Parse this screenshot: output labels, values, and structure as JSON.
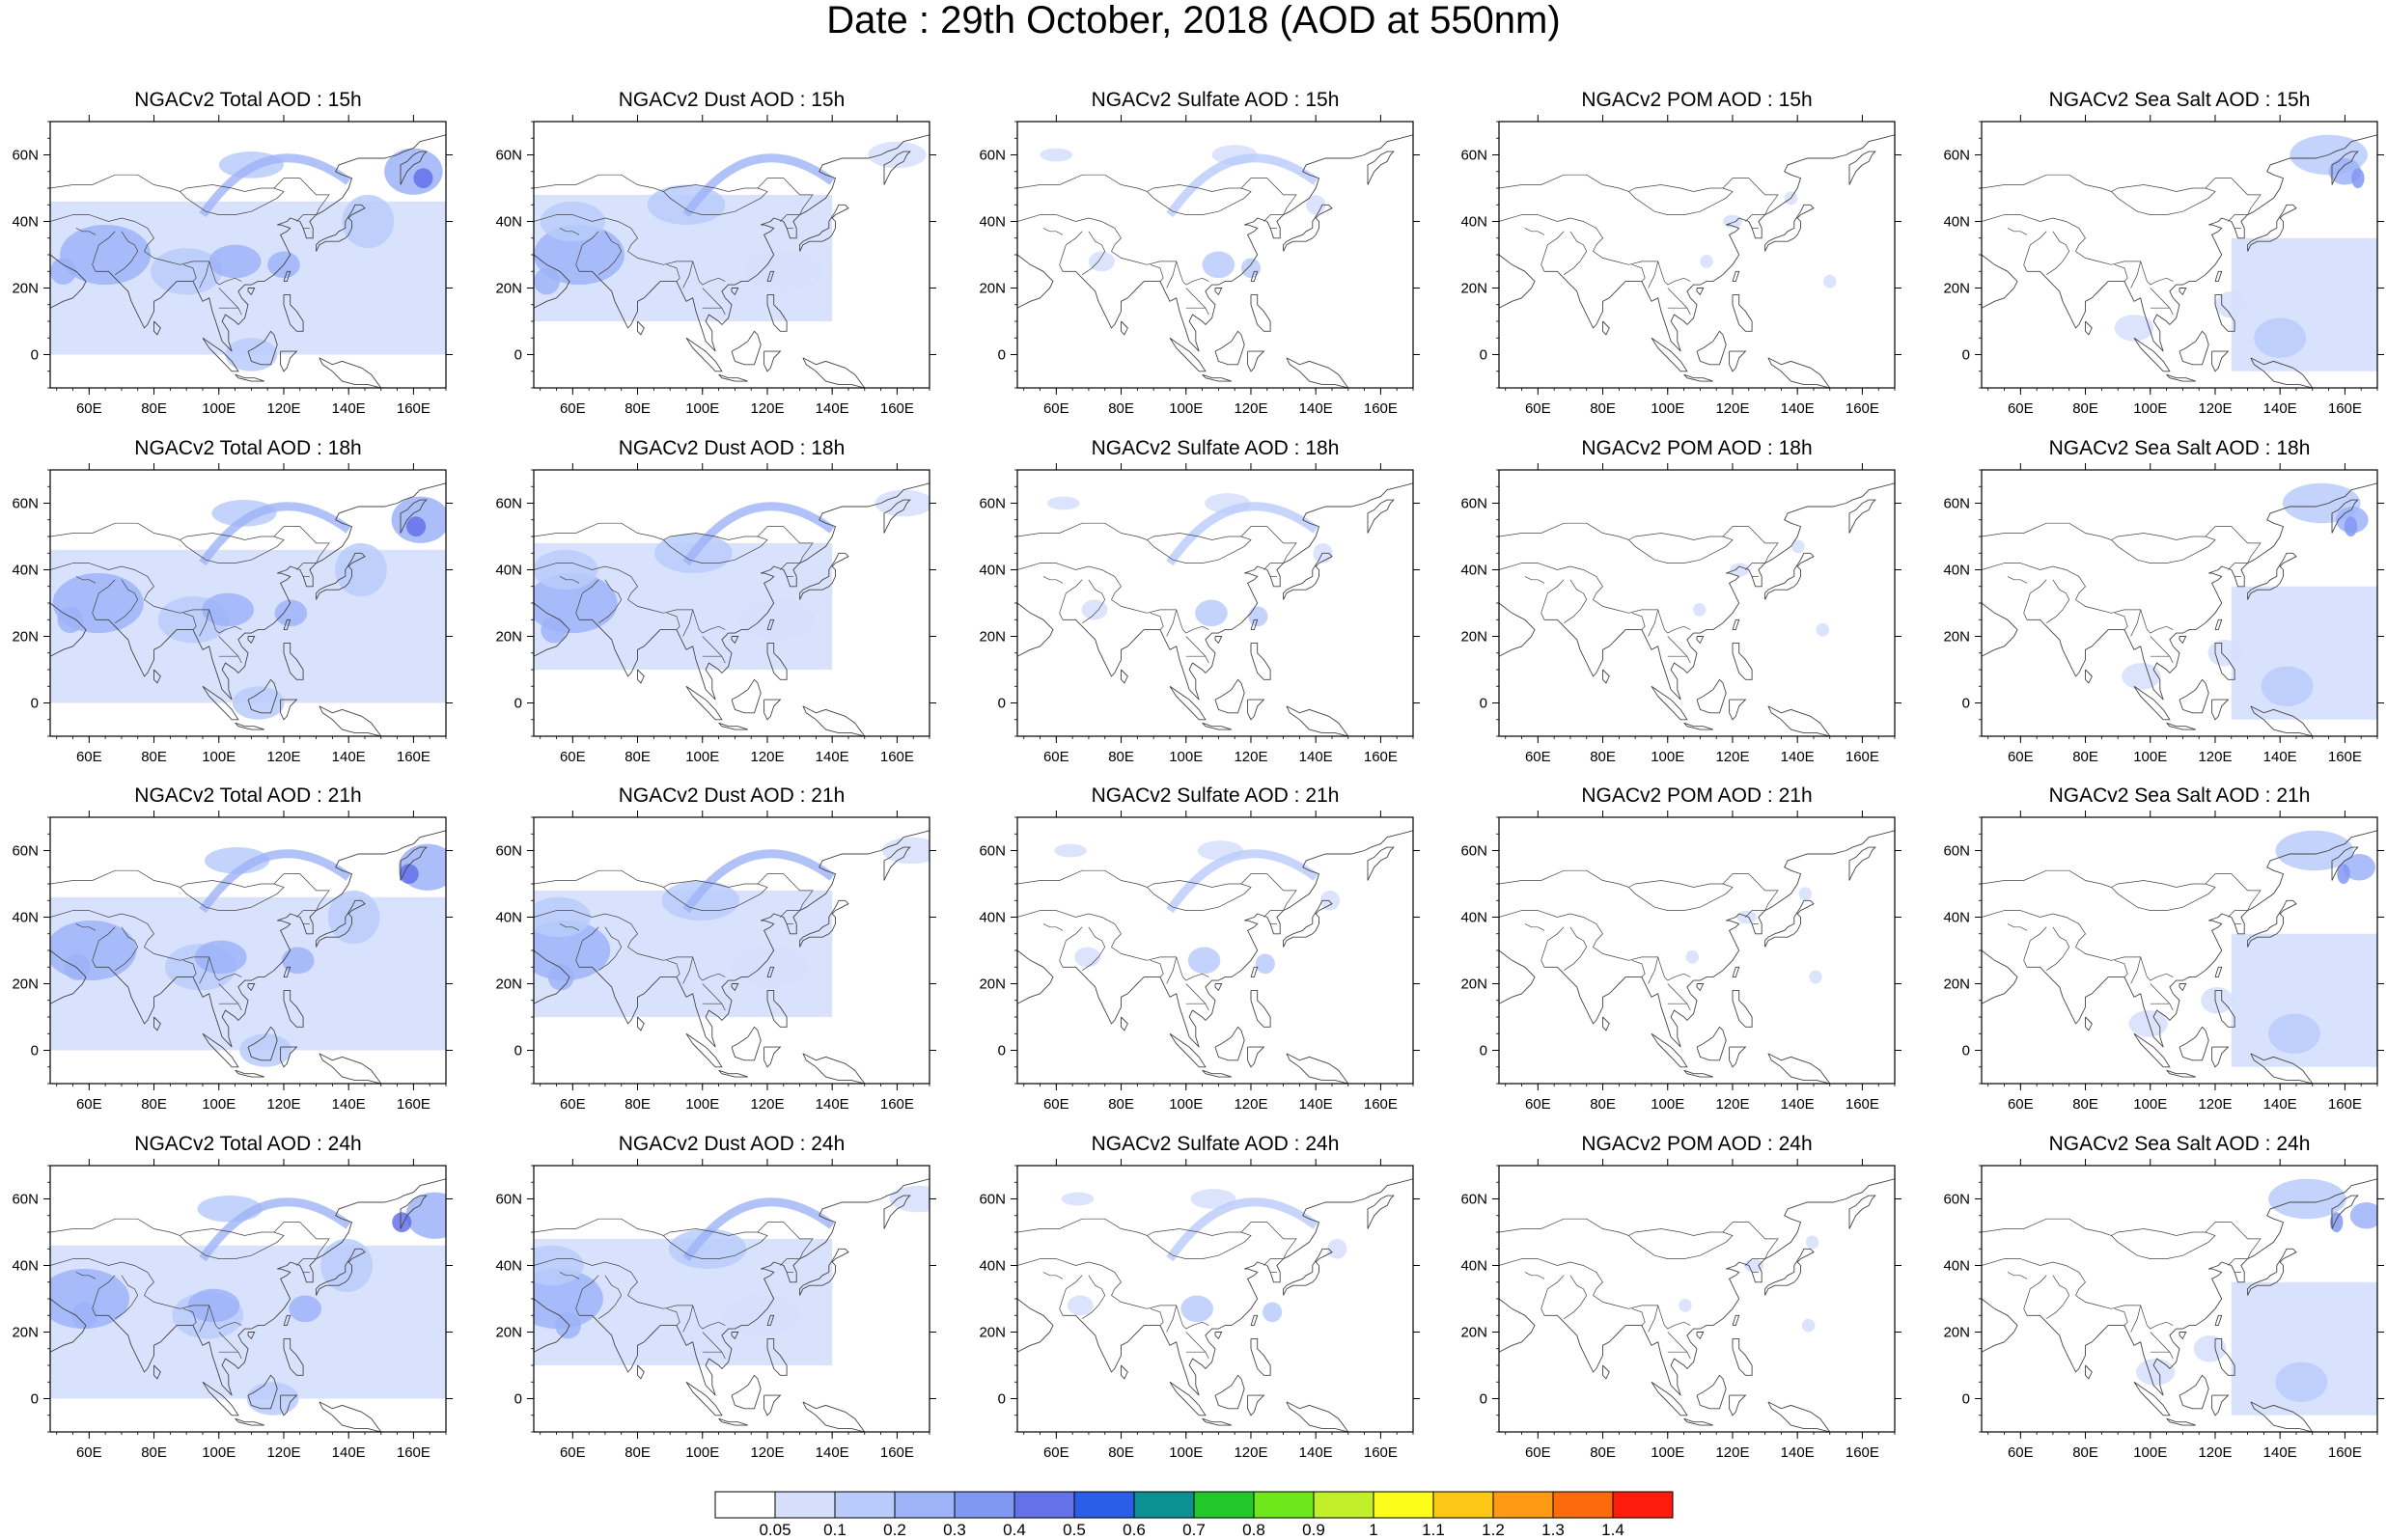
{
  "title": "Date : 29th October, 2018 (AOD at 550nm)",
  "map_extent": {
    "lon": [
      48,
      170
    ],
    "lat": [
      -10,
      70
    ]
  },
  "lon_ticks": [
    {
      "value": 60,
      "label": "60E"
    },
    {
      "value": 80,
      "label": "80E"
    },
    {
      "value": 100,
      "label": "100E"
    },
    {
      "value": 120,
      "label": "120E"
    },
    {
      "value": 140,
      "label": "140E"
    },
    {
      "value": 160,
      "label": "160E"
    }
  ],
  "lat_ticks": [
    {
      "value": 0,
      "label": "0"
    },
    {
      "value": 20,
      "label": "20N"
    },
    {
      "value": 40,
      "label": "40N"
    },
    {
      "value": 60,
      "label": "60N"
    }
  ],
  "species": [
    {
      "key": "total",
      "intensity": 1.0
    },
    {
      "key": "dust",
      "intensity": 0.7
    },
    {
      "key": "sulfate",
      "intensity": 0.3
    },
    {
      "key": "pom",
      "intensity": 0.1
    },
    {
      "key": "seasalt",
      "intensity": 0.55
    }
  ],
  "panels": [
    [
      "NGACv2 Total AOD : 15h",
      "NGACv2 Dust AOD : 15h",
      "NGACv2 Sulfate AOD : 15h",
      "NGACv2 POM AOD : 15h",
      "NGACv2 Sea Salt AOD : 15h"
    ],
    [
      "NGACv2 Total AOD : 18h",
      "NGACv2 Dust AOD : 18h",
      "NGACv2 Sulfate AOD : 18h",
      "NGACv2 POM AOD : 18h",
      "NGACv2 Sea Salt AOD : 18h"
    ],
    [
      "NGACv2 Total AOD : 21h",
      "NGACv2 Dust AOD : 21h",
      "NGACv2 Sulfate AOD : 21h",
      "NGACv2 POM AOD : 21h",
      "NGACv2 Sea Salt AOD : 21h"
    ],
    [
      "NGACv2 Total AOD : 24h",
      "NGACv2 Dust AOD : 24h",
      "NGACv2 Sulfate AOD : 24h",
      "NGACv2 POM AOD : 24h",
      "NGACv2 Sea Salt  AOD : 24h"
    ]
  ],
  "colorbar": {
    "labels": [
      "0.05",
      "0.1",
      "0.2",
      "0.3",
      "0.4",
      "0.5",
      "0.6",
      "0.7",
      "0.8",
      "0.9",
      "1",
      "1.1",
      "1.2",
      "1.3",
      "1.4"
    ],
    "colors": [
      "#ffffff",
      "#d5dffc",
      "#b9cbfb",
      "#9db3f8",
      "#8198f2",
      "#6472ea",
      "#2a5ee8",
      "#0c9192",
      "#22c72a",
      "#6ee81a",
      "#c1f02a",
      "#fdfd1c",
      "#fdc815",
      "#fd9a12",
      "#fd6a0b",
      "#fd1c0b"
    ]
  }
}
